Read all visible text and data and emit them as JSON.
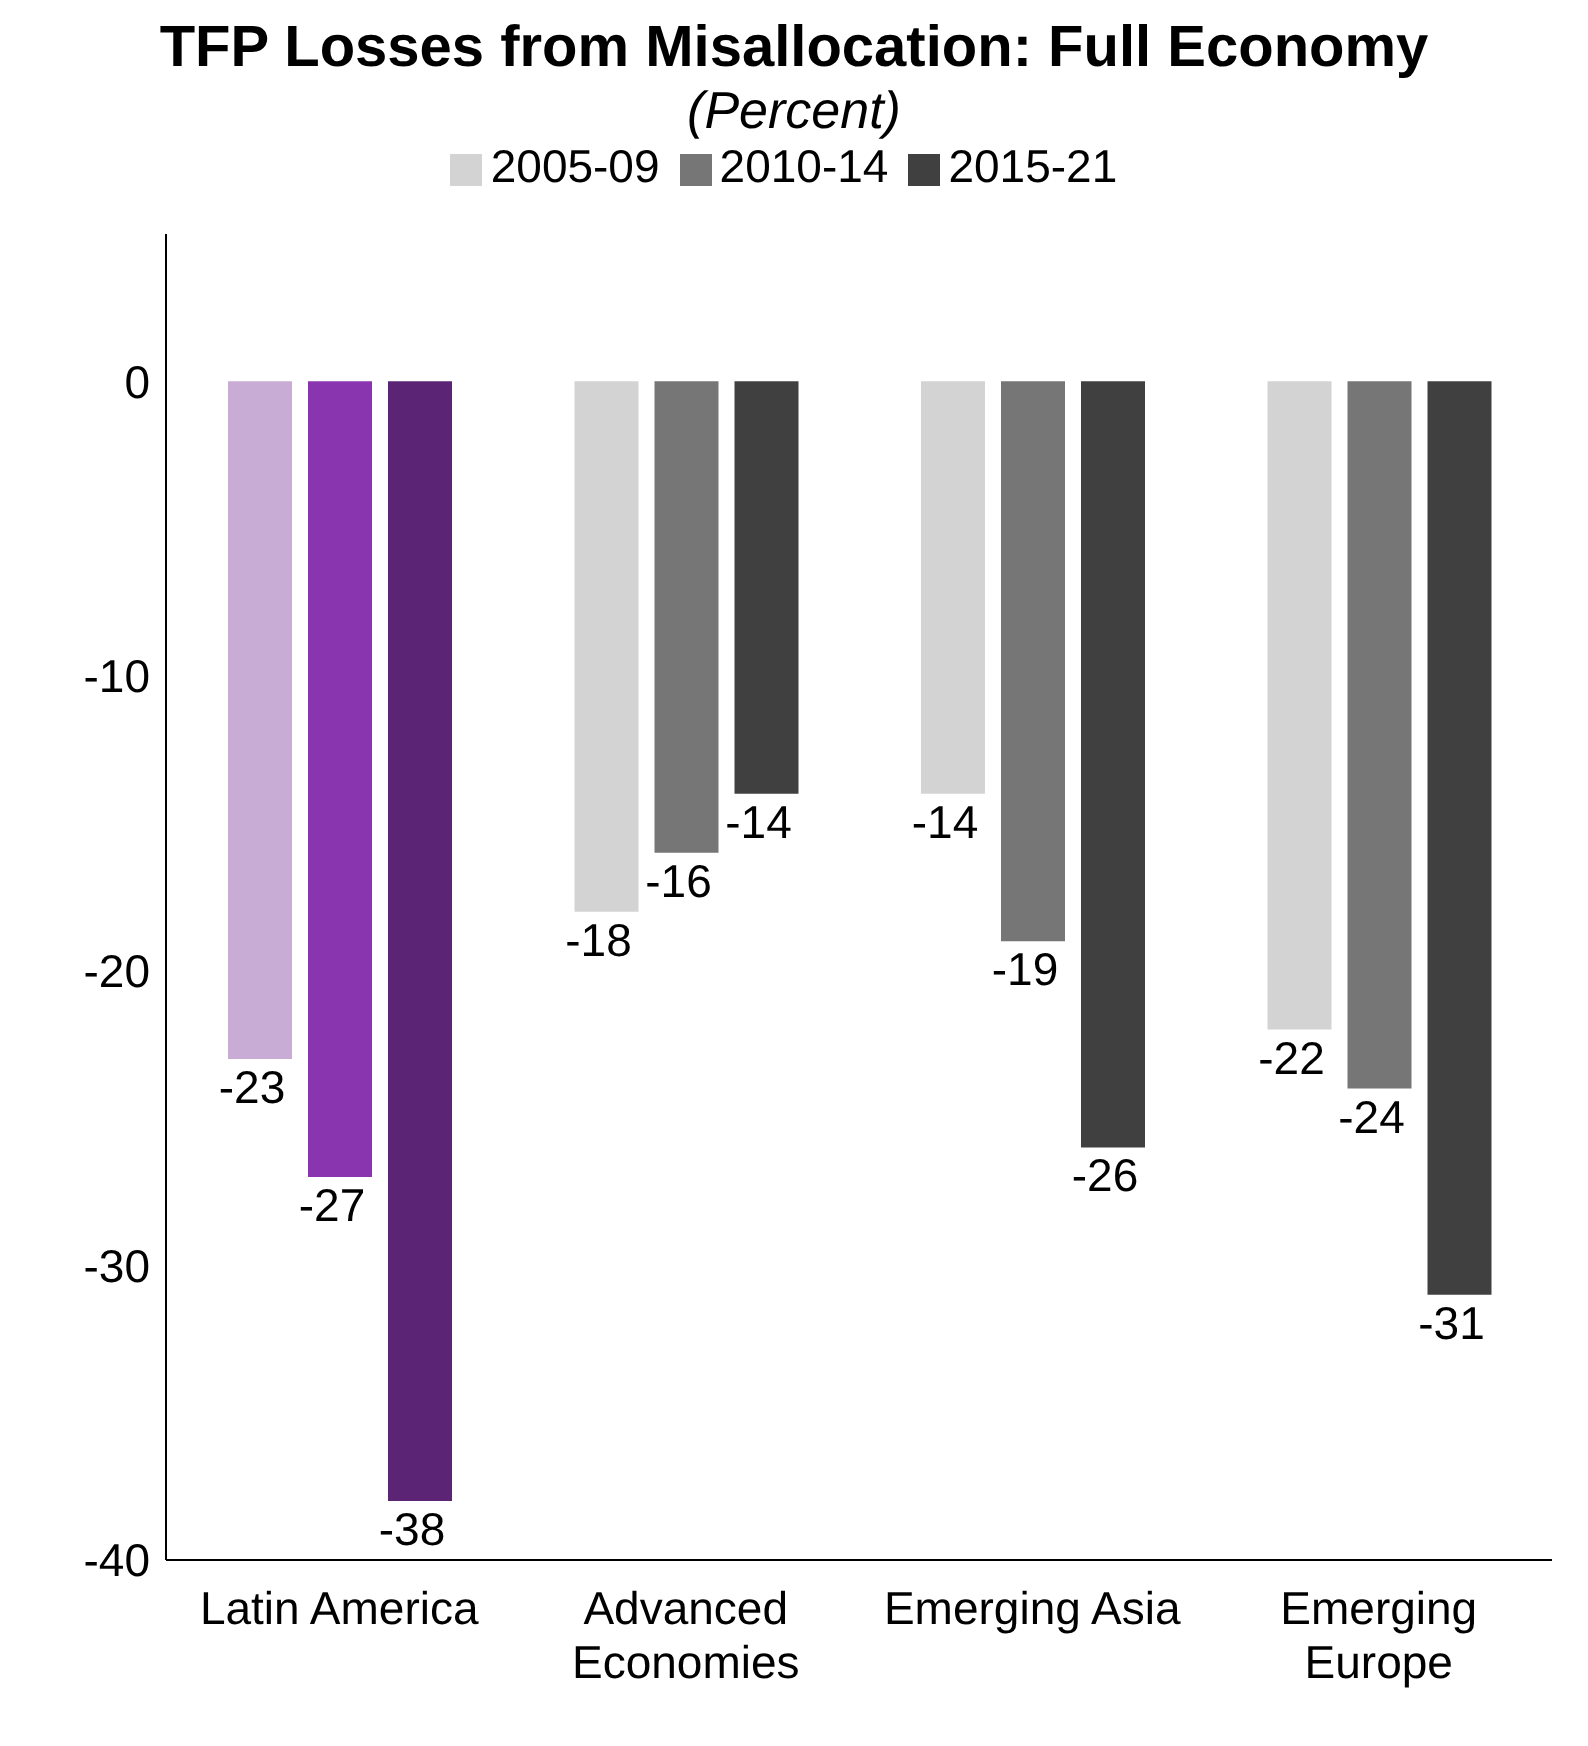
{
  "chart_data": {
    "type": "bar",
    "title": "TFP Losses from Misallocation: Full Economy",
    "subtitle": "(Percent)",
    "categories": [
      "Latin America",
      "Advanced Economies",
      "Emerging Asia",
      "Emerging Europe"
    ],
    "series": [
      {
        "name": "2005-09",
        "color": "#d3d3d3",
        "colors": [
          "#c9acd6",
          "#d3d3d3",
          "#d3d3d3",
          "#d3d3d3"
        ],
        "values": [
          -23,
          -18,
          -14,
          -22
        ]
      },
      {
        "name": "2010-14",
        "color": "#767676",
        "colors": [
          "#8a35b0",
          "#767676",
          "#767676",
          "#767676"
        ],
        "values": [
          -27,
          -16,
          -19,
          -24
        ]
      },
      {
        "name": "2015-21",
        "color": "#404040",
        "colors": [
          "#5c2475",
          "#404040",
          "#404040",
          "#404040"
        ],
        "values": [
          -38,
          -14,
          -26,
          -31
        ]
      }
    ],
    "ylim": [
      -40,
      5
    ],
    "yticks": [
      -40,
      -30,
      -20,
      -10,
      0
    ],
    "data_labels": true,
    "legend": "top",
    "grid": false
  }
}
